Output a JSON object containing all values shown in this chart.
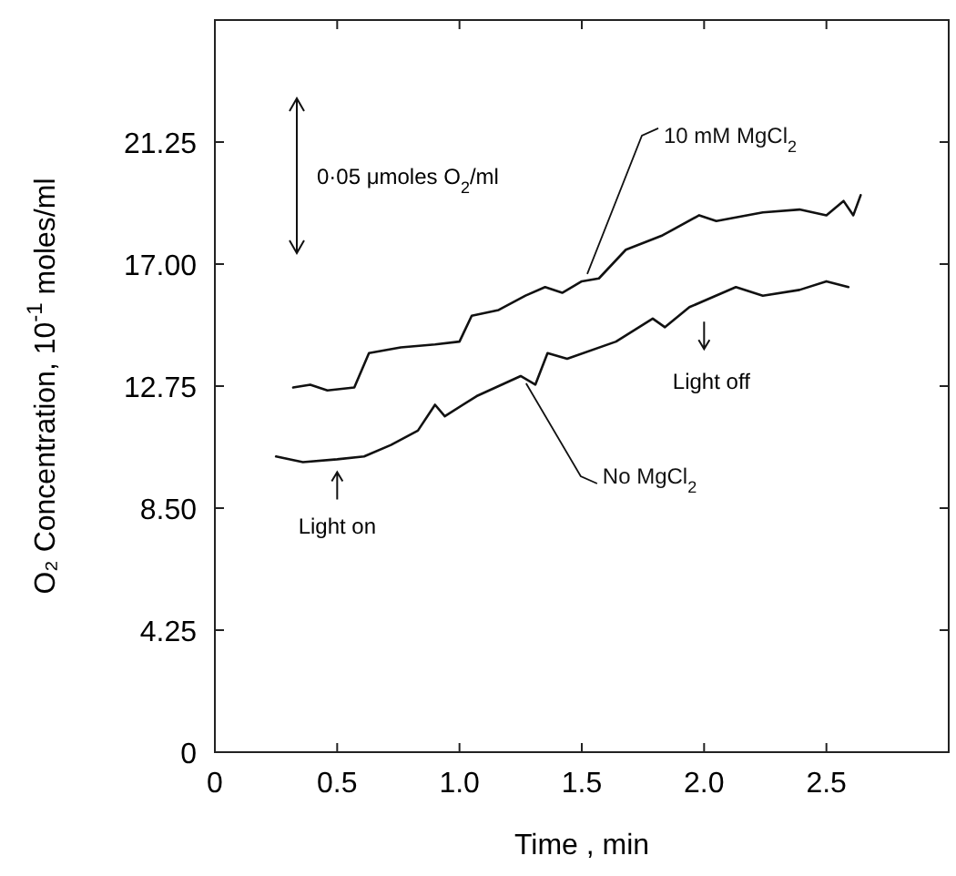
{
  "chart_data": {
    "type": "line",
    "xlabel": "Time , min",
    "ylabel": "O₂ Concentration, 10$^{-1}$ moles/ml",
    "xlim": [
      0,
      3
    ],
    "ylim": [
      0,
      25.5
    ],
    "xticks": [
      0,
      0.5,
      {
        "value": 1,
        "label": "1.0"
      },
      1.5,
      {
        "value": 2,
        "label": "2.0"
      },
      2.5
    ],
    "yticks": [
      0,
      4.25,
      {
        "value": 8.5,
        "label": "8.50"
      },
      12.75,
      {
        "value": 17,
        "label": "17.00"
      },
      21.25
    ],
    "grid": false,
    "marker": "none",
    "line_style": "solid",
    "series": [
      {
        "name": "10 mM MgCl$_{2}$",
        "color": "#111111",
        "x": [
          0.32,
          0.39,
          0.46,
          0.57,
          0.63,
          0.76,
          0.9,
          1.0,
          1.05,
          1.16,
          1.27,
          1.35,
          1.42,
          1.5,
          1.57,
          1.68,
          1.83,
          1.98,
          2.05,
          2.24,
          2.39,
          2.5,
          2.57,
          2.61,
          2.64
        ],
        "values": [
          12.7,
          12.8,
          12.6,
          12.7,
          13.9,
          14.1,
          14.2,
          14.3,
          15.2,
          15.4,
          15.9,
          16.2,
          16.0,
          16.4,
          16.5,
          17.5,
          18.0,
          18.7,
          18.5,
          18.8,
          18.9,
          18.7,
          19.2,
          18.7,
          19.4
        ]
      },
      {
        "name": "No MgCl$_{2}$",
        "color": "#111111",
        "x": [
          0.25,
          0.36,
          0.5,
          0.61,
          0.72,
          0.83,
          0.9,
          0.94,
          1.07,
          1.25,
          1.31,
          1.36,
          1.44,
          1.64,
          1.79,
          1.84,
          1.94,
          2.13,
          2.24,
          2.39,
          2.5,
          2.59
        ],
        "values": [
          10.3,
          10.1,
          10.2,
          10.3,
          10.7,
          11.2,
          12.1,
          11.7,
          12.4,
          13.1,
          12.8,
          13.9,
          13.7,
          14.3,
          15.1,
          14.8,
          15.5,
          16.2,
          15.9,
          16.1,
          16.4,
          16.2
        ]
      }
    ],
    "annotations": [
      "0·05 μmoles O$_{2}$/ml",
      {
        "text": "Light on",
        "x": 0.5,
        "y": 10.2
      },
      {
        "text": "Light off",
        "x": 2.0,
        "y": 15.5
      }
    ]
  }
}
